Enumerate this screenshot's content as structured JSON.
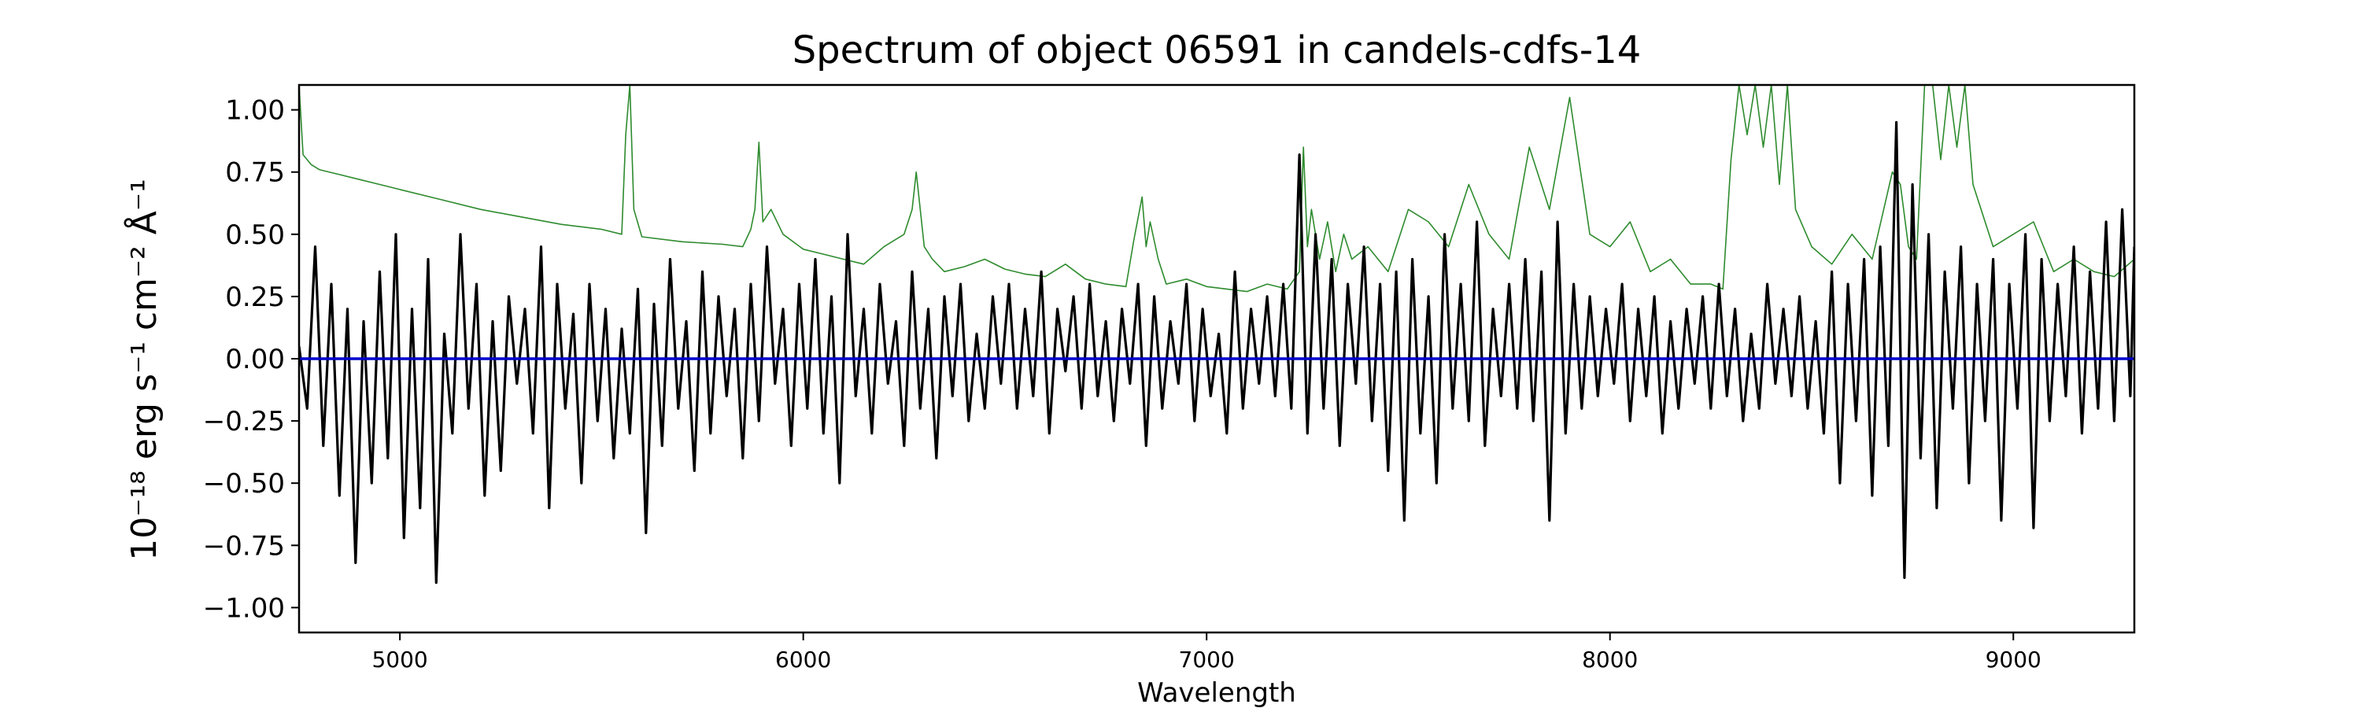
{
  "chart_data": {
    "type": "line",
    "title": "Spectrum of object 06591 in candels-cdfs-14",
    "xlabel": "Wavelength",
    "ylabel": "10⁻¹⁸ erg s⁻¹ cm⁻² Å⁻¹",
    "xlim": [
      4750,
      9300
    ],
    "ylim": [
      -1.1,
      1.1
    ],
    "x_ticks": [
      5000,
      6000,
      7000,
      8000,
      9000
    ],
    "y_ticks": [
      -1.0,
      -0.75,
      -0.5,
      -0.25,
      0.0,
      0.25,
      0.5,
      0.75,
      1.0
    ],
    "x_tick_labels": [
      "5000",
      "6000",
      "7000",
      "8000",
      "9000"
    ],
    "y_tick_labels": [
      "−1.00",
      "−0.75",
      "−0.50",
      "−0.25",
      "0.00",
      "0.25",
      "0.50",
      "0.75",
      "1.00"
    ],
    "grid": false,
    "legend": "none",
    "series": [
      {
        "role": "flux",
        "color": "#000000",
        "x": [
          4750,
          4770,
          4790,
          4810,
          4830,
          4850,
          4870,
          4890,
          4910,
          4930,
          4950,
          4970,
          4990,
          5010,
          5030,
          5050,
          5070,
          5090,
          5110,
          5130,
          5150,
          5170,
          5190,
          5210,
          5230,
          5250,
          5270,
          5290,
          5310,
          5330,
          5350,
          5370,
          5390,
          5410,
          5430,
          5450,
          5470,
          5490,
          5510,
          5530,
          5550,
          5570,
          5590,
          5610,
          5630,
          5650,
          5670,
          5690,
          5710,
          5730,
          5750,
          5770,
          5790,
          5810,
          5830,
          5850,
          5870,
          5890,
          5910,
          5930,
          5950,
          5970,
          5990,
          6010,
          6030,
          6050,
          6070,
          6090,
          6110,
          6130,
          6150,
          6170,
          6190,
          6210,
          6230,
          6250,
          6270,
          6290,
          6310,
          6330,
          6350,
          6370,
          6390,
          6410,
          6430,
          6450,
          6470,
          6490,
          6510,
          6530,
          6550,
          6570,
          6590,
          6610,
          6630,
          6650,
          6670,
          6690,
          6710,
          6730,
          6750,
          6770,
          6790,
          6810,
          6830,
          6850,
          6870,
          6890,
          6910,
          6930,
          6950,
          6970,
          6990,
          7010,
          7030,
          7050,
          7070,
          7090,
          7110,
          7130,
          7150,
          7170,
          7190,
          7210,
          7230,
          7250,
          7270,
          7290,
          7310,
          7330,
          7350,
          7370,
          7390,
          7410,
          7430,
          7450,
          7470,
          7490,
          7510,
          7530,
          7550,
          7570,
          7590,
          7610,
          7630,
          7650,
          7670,
          7690,
          7710,
          7730,
          7750,
          7770,
          7790,
          7810,
          7830,
          7850,
          7870,
          7890,
          7910,
          7930,
          7950,
          7970,
          7990,
          8010,
          8030,
          8050,
          8070,
          8090,
          8110,
          8130,
          8150,
          8170,
          8190,
          8210,
          8230,
          8250,
          8270,
          8290,
          8310,
          8330,
          8350,
          8370,
          8390,
          8410,
          8430,
          8450,
          8470,
          8490,
          8510,
          8530,
          8550,
          8570,
          8590,
          8610,
          8630,
          8650,
          8670,
          8690,
          8710,
          8730,
          8750,
          8770,
          8790,
          8810,
          8830,
          8850,
          8870,
          8890,
          8910,
          8930,
          8950,
          8970,
          8990,
          9010,
          9030,
          9050,
          9070,
          9090,
          9110,
          9130,
          9150,
          9170,
          9190,
          9210,
          9230,
          9250,
          9270,
          9290,
          9300
        ],
        "y": [
          0.05,
          -0.2,
          0.45,
          -0.35,
          0.3,
          -0.55,
          0.2,
          -0.82,
          0.15,
          -0.5,
          0.35,
          -0.4,
          0.5,
          -0.72,
          0.2,
          -0.6,
          0.4,
          -0.9,
          0.1,
          -0.3,
          0.5,
          -0.2,
          0.3,
          -0.55,
          0.15,
          -0.45,
          0.25,
          -0.1,
          0.2,
          -0.3,
          0.45,
          -0.6,
          0.3,
          -0.2,
          0.18,
          -0.5,
          0.3,
          -0.25,
          0.2,
          -0.4,
          0.12,
          -0.3,
          0.28,
          -0.7,
          0.22,
          -0.35,
          0.4,
          -0.2,
          0.15,
          -0.45,
          0.35,
          -0.3,
          0.25,
          -0.15,
          0.2,
          -0.4,
          0.3,
          -0.25,
          0.45,
          -0.1,
          0.2,
          -0.35,
          0.3,
          -0.2,
          0.4,
          -0.3,
          0.25,
          -0.5,
          0.5,
          -0.15,
          0.2,
          -0.3,
          0.3,
          -0.1,
          0.15,
          -0.35,
          0.35,
          -0.2,
          0.2,
          -0.4,
          0.25,
          -0.15,
          0.3,
          -0.25,
          0.1,
          -0.2,
          0.25,
          -0.1,
          0.3,
          -0.2,
          0.2,
          -0.15,
          0.35,
          -0.3,
          0.2,
          -0.05,
          0.25,
          -0.2,
          0.3,
          -0.15,
          0.15,
          -0.25,
          0.2,
          -0.1,
          0.3,
          -0.35,
          0.25,
          -0.2,
          0.15,
          -0.1,
          0.3,
          -0.25,
          0.2,
          -0.15,
          0.1,
          -0.3,
          0.35,
          -0.2,
          0.2,
          -0.1,
          0.25,
          -0.15,
          0.3,
          -0.2,
          0.82,
          -0.3,
          0.5,
          -0.2,
          0.4,
          -0.35,
          0.3,
          -0.1,
          0.45,
          -0.25,
          0.3,
          -0.45,
          0.35,
          -0.65,
          0.4,
          -0.3,
          0.25,
          -0.5,
          0.5,
          -0.2,
          0.3,
          -0.25,
          0.55,
          -0.35,
          0.2,
          -0.15,
          0.3,
          -0.2,
          0.4,
          -0.25,
          0.35,
          -0.65,
          0.55,
          -0.3,
          0.3,
          -0.2,
          0.25,
          -0.15,
          0.2,
          -0.1,
          0.3,
          -0.25,
          0.2,
          -0.15,
          0.25,
          -0.3,
          0.15,
          -0.2,
          0.2,
          -0.1,
          0.25,
          -0.2,
          0.3,
          -0.15,
          0.2,
          -0.25,
          0.1,
          -0.2,
          0.3,
          -0.1,
          0.2,
          -0.15,
          0.25,
          -0.2,
          0.15,
          -0.3,
          0.35,
          -0.5,
          0.3,
          -0.25,
          0.4,
          -0.55,
          0.45,
          -0.35,
          0.95,
          -0.88,
          0.7,
          -0.4,
          0.5,
          -0.6,
          0.35,
          -0.2,
          0.45,
          -0.5,
          0.3,
          -0.25,
          0.4,
          -0.65,
          0.3,
          -0.2,
          0.5,
          -0.68,
          0.4,
          -0.25,
          0.3,
          -0.15,
          0.45,
          -0.3,
          0.35,
          -0.2,
          0.55,
          -0.25,
          0.6,
          -0.15,
          0.45
        ]
      },
      {
        "role": "error",
        "color": "#2e8b2e",
        "x": [
          4750,
          4760,
          4780,
          4800,
          4850,
          4900,
          4950,
          5000,
          5100,
          5200,
          5300,
          5400,
          5500,
          5550,
          5560,
          5570,
          5580,
          5600,
          5700,
          5800,
          5850,
          5870,
          5880,
          5890,
          5900,
          5920,
          5950,
          6000,
          6050,
          6100,
          6150,
          6200,
          6250,
          6270,
          6280,
          6290,
          6300,
          6320,
          6350,
          6400,
          6450,
          6500,
          6550,
          6600,
          6650,
          6700,
          6750,
          6800,
          6820,
          6840,
          6850,
          6860,
          6880,
          6900,
          6950,
          7000,
          7050,
          7100,
          7150,
          7200,
          7230,
          7240,
          7250,
          7260,
          7280,
          7300,
          7320,
          7340,
          7360,
          7400,
          7450,
          7500,
          7550,
          7600,
          7650,
          7700,
          7750,
          7800,
          7850,
          7900,
          7950,
          8000,
          8050,
          8100,
          8150,
          8200,
          8250,
          8280,
          8300,
          8320,
          8340,
          8360,
          8380,
          8400,
          8420,
          8440,
          8460,
          8500,
          8550,
          8600,
          8650,
          8700,
          8720,
          8740,
          8760,
          8780,
          8800,
          8820,
          8840,
          8860,
          8880,
          8900,
          8950,
          9000,
          9050,
          9100,
          9150,
          9200,
          9250,
          9300
        ],
        "y": [
          1.1,
          0.82,
          0.78,
          0.76,
          0.74,
          0.72,
          0.7,
          0.68,
          0.64,
          0.6,
          0.57,
          0.54,
          0.52,
          0.5,
          0.9,
          1.1,
          0.6,
          0.49,
          0.47,
          0.46,
          0.45,
          0.52,
          0.6,
          0.87,
          0.55,
          0.6,
          0.5,
          0.44,
          0.42,
          0.4,
          0.38,
          0.45,
          0.5,
          0.6,
          0.75,
          0.6,
          0.45,
          0.4,
          0.35,
          0.37,
          0.4,
          0.36,
          0.34,
          0.33,
          0.38,
          0.32,
          0.3,
          0.29,
          0.48,
          0.65,
          0.45,
          0.55,
          0.4,
          0.3,
          0.32,
          0.29,
          0.28,
          0.27,
          0.3,
          0.28,
          0.35,
          0.85,
          0.45,
          0.6,
          0.4,
          0.55,
          0.35,
          0.5,
          0.4,
          0.45,
          0.35,
          0.6,
          0.55,
          0.45,
          0.7,
          0.5,
          0.4,
          0.85,
          0.6,
          1.05,
          0.5,
          0.45,
          0.55,
          0.35,
          0.4,
          0.3,
          0.3,
          0.28,
          0.8,
          1.1,
          0.9,
          1.1,
          0.85,
          1.1,
          0.7,
          1.1,
          0.6,
          0.45,
          0.38,
          0.5,
          0.4,
          0.75,
          0.7,
          0.45,
          0.4,
          1.1,
          1.1,
          0.8,
          1.1,
          0.85,
          1.1,
          0.7,
          0.45,
          0.5,
          0.55,
          0.35,
          0.4,
          0.35,
          0.33,
          0.4
        ]
      },
      {
        "role": "zero",
        "color": "#0000cc",
        "x": [
          4750,
          9300
        ],
        "y": [
          0,
          0
        ]
      }
    ]
  }
}
